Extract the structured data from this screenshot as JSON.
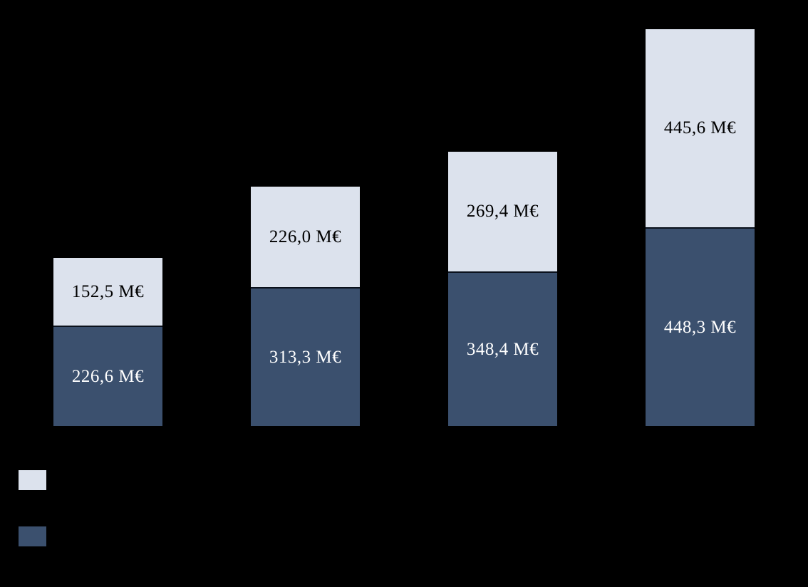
{
  "window": {
    "background_color": "#000000"
  },
  "chart_data": {
    "type": "bar",
    "stacked": true,
    "orientation": "vertical",
    "categories": [
      "",
      "",
      "",
      ""
    ],
    "unit": "M€",
    "series": [
      {
        "id": "bottom",
        "name": "",
        "color": "#3B506E",
        "label_color": "#FFFFFF",
        "values": [
          226.6,
          313.3,
          348.4,
          448.3
        ],
        "labels": [
          "226,6 M€",
          "313,3 M€",
          "348,4 M€",
          "448,3 M€"
        ]
      },
      {
        "id": "top",
        "name": "",
        "color": "#DCE2ED",
        "label_color": "#000000",
        "values": [
          152.5,
          226.0,
          269.4,
          445.6
        ],
        "labels": [
          "152,5 M€",
          "226,0 M€",
          "269,4 M€",
          "445,6 M€"
        ]
      }
    ],
    "totals": [
      379.1,
      539.3,
      617.8,
      893.9
    ],
    "grid": false,
    "axes_visible": false,
    "legend": {
      "position": "bottom-left",
      "entries": [
        {
          "id": "top",
          "swatch_color": "#DCE2ED",
          "label": ""
        },
        {
          "id": "bottom",
          "swatch_color": "#3B506E",
          "label": ""
        }
      ]
    }
  }
}
